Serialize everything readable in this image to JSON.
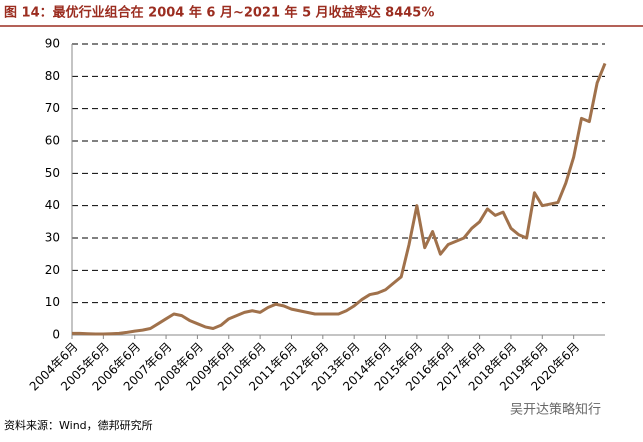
{
  "chart_data": {
    "type": "line",
    "title": "图 14：最优行业组合在 2004 年 6 月~2021 年 5 月收益率达 8445%",
    "source": "资料来源：Wind，德邦研究所",
    "watermark": "吴开达策略知行",
    "categories": [
      "2004年6月",
      null,
      null,
      null,
      "2005年6月",
      null,
      null,
      null,
      "2006年6月",
      null,
      null,
      null,
      "2007年6月",
      null,
      null,
      null,
      "2008年6月",
      null,
      null,
      null,
      "2009年6月",
      null,
      null,
      null,
      "2010年6月",
      null,
      null,
      null,
      "2011年6月",
      null,
      null,
      null,
      "2012年6月",
      null,
      null,
      null,
      "2013年6月",
      null,
      null,
      null,
      "2014年6月",
      null,
      null,
      null,
      "2015年6月",
      null,
      null,
      null,
      "2016年6月",
      null,
      null,
      null,
      "2017年6月",
      null,
      null,
      null,
      "2018年6月",
      null,
      null,
      null,
      "2019年6月",
      null,
      null,
      null,
      "2020年6月",
      null,
      null,
      null,
      null
    ],
    "series": [
      {
        "name": "最优行业组合",
        "color": "#a0714b",
        "values": [
          0.5,
          0.5,
          0.4,
          0.3,
          0.3,
          0.4,
          0.5,
          0.8,
          1.2,
          1.5,
          2,
          3.5,
          5,
          6.5,
          6,
          4.5,
          3.5,
          2.5,
          2,
          3,
          5,
          6,
          7,
          7.5,
          7,
          8.5,
          9.5,
          9,
          8,
          7.5,
          7,
          6.5,
          6.5,
          6.5,
          6.5,
          7.5,
          9,
          11,
          12.5,
          13,
          14,
          16,
          18,
          28,
          40,
          27,
          32,
          25,
          28,
          29,
          30,
          33,
          35,
          39,
          37,
          38,
          33,
          31,
          30,
          44,
          40,
          40.5,
          41,
          47,
          55,
          67,
          66,
          78,
          84
        ]
      }
    ],
    "ylim": [
      0,
      90
    ],
    "yticks": [
      0,
      10,
      20,
      30,
      40,
      50,
      60,
      70,
      80,
      90
    ],
    "grid": true
  }
}
